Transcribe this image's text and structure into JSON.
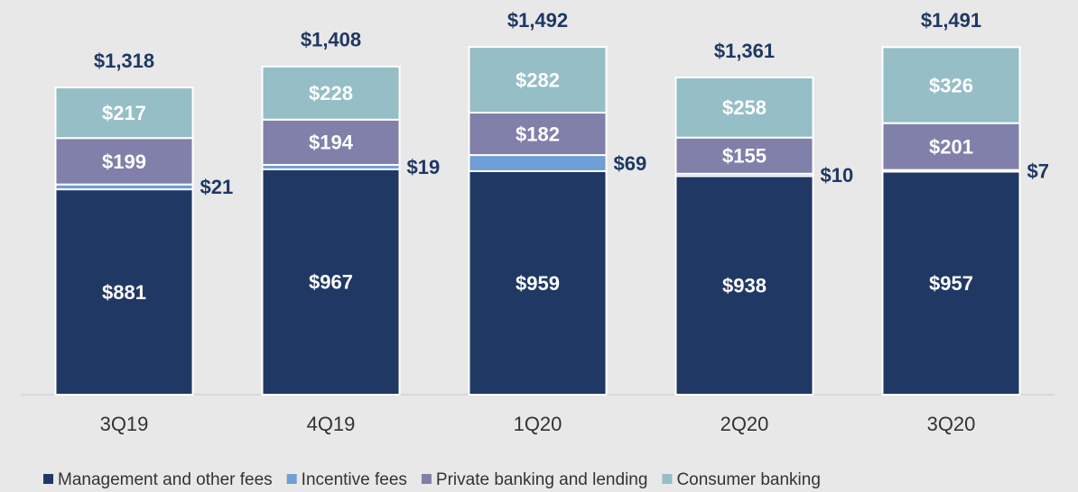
{
  "chart_data": {
    "type": "stacked_bar",
    "categories": [
      "3Q19",
      "4Q19",
      "1Q20",
      "2Q20",
      "3Q20"
    ],
    "series": [
      {
        "name": "Management and other fees",
        "color": "#203864",
        "values": [
          881,
          967,
          959,
          938,
          957
        ],
        "value_labels": [
          "$881",
          "$967",
          "$959",
          "$938",
          "$957"
        ]
      },
      {
        "name": "Incentive fees",
        "color": "#6e9fd6",
        "values": [
          21,
          19,
          69,
          10,
          7
        ],
        "value_labels": [
          "$21",
          "$19",
          "$69",
          "$10",
          "$7"
        ]
      },
      {
        "name": "Private banking and lending",
        "color": "#8080aa",
        "values": [
          199,
          194,
          182,
          155,
          201
        ],
        "value_labels": [
          "$199",
          "$194",
          "$182",
          "$155",
          "$201"
        ]
      },
      {
        "name": "Consumer banking",
        "color": "#95bec6",
        "values": [
          217,
          228,
          282,
          258,
          326
        ],
        "value_labels": [
          "$217",
          "$228",
          "$282",
          "$258",
          "$326"
        ]
      }
    ],
    "totals": [
      1318,
      1408,
      1492,
      1361,
      1491
    ],
    "total_labels": [
      "$1,318",
      "$1,408",
      "$1,492",
      "$1,361",
      "$1,491"
    ],
    "ylim": [
      0,
      1500
    ],
    "legend": "bottom"
  }
}
